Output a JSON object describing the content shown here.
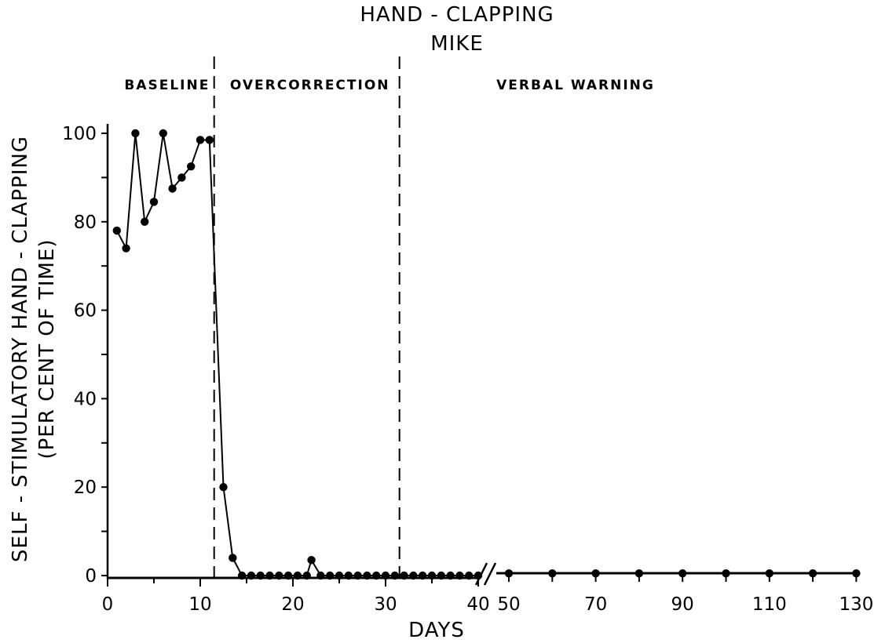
{
  "chart_data": {
    "type": "line",
    "title": "HAND - CLAPPING",
    "subtitle": "MIKE",
    "xlabel": "DAYS",
    "ylabel_line1": "SELF - STIMULATORY  HAND - CLAPPING",
    "ylabel_line2": "(PER CENT  OF  TIME)",
    "ylim": [
      0,
      100
    ],
    "y_ticks": [
      0,
      20,
      40,
      60,
      80,
      100
    ],
    "x_ticks_left": [
      0,
      10,
      20,
      30,
      40
    ],
    "x_ticks_right": [
      50,
      70,
      90,
      110,
      130
    ],
    "x_axis_break": "between 40 and 50",
    "phases": [
      {
        "label": "BASELINE",
        "start": 0,
        "end": 11.5
      },
      {
        "label": "OVERCORRECTION",
        "start": 11.5,
        "end": 31.5
      },
      {
        "label": "VERBAL WARNING",
        "start": 31.5,
        "end": 130
      }
    ],
    "phase_change_lines": [
      11.5,
      31.5
    ],
    "series": [
      {
        "segment": "days 1-40",
        "points": [
          [
            1,
            78
          ],
          [
            2,
            74
          ],
          [
            3,
            100
          ],
          [
            4,
            80
          ],
          [
            5,
            84.5
          ],
          [
            6,
            100
          ],
          [
            7,
            87.5
          ],
          [
            8,
            90
          ],
          [
            9,
            92.5
          ],
          [
            10,
            98.5
          ],
          [
            11,
            98.5
          ],
          [
            12.5,
            20
          ],
          [
            13.5,
            4
          ],
          [
            14.5,
            0
          ],
          [
            15.5,
            0
          ],
          [
            16.5,
            0
          ],
          [
            17.5,
            0
          ],
          [
            18.5,
            0
          ],
          [
            19.5,
            0
          ],
          [
            20.5,
            0
          ],
          [
            21.5,
            0
          ],
          [
            22,
            3.5
          ],
          [
            23,
            0
          ],
          [
            24,
            0
          ],
          [
            25,
            0
          ],
          [
            26,
            0
          ],
          [
            27,
            0
          ],
          [
            28,
            0
          ],
          [
            29,
            0
          ],
          [
            30,
            0
          ],
          [
            31,
            0
          ],
          [
            32,
            0
          ],
          [
            33,
            0
          ],
          [
            34,
            0
          ],
          [
            35,
            0
          ],
          [
            36,
            0
          ],
          [
            37,
            0
          ],
          [
            38,
            0
          ],
          [
            39,
            0
          ],
          [
            40,
            0
          ]
        ]
      },
      {
        "segment": "days 50-130",
        "points": [
          [
            50,
            0.5
          ],
          [
            60,
            0.5
          ],
          [
            70,
            0.5
          ],
          [
            80,
            0.5
          ],
          [
            90,
            0.5
          ],
          [
            100,
            0.5
          ],
          [
            110,
            0.5
          ],
          [
            120,
            0.5
          ],
          [
            130,
            0.5
          ]
        ]
      }
    ]
  }
}
